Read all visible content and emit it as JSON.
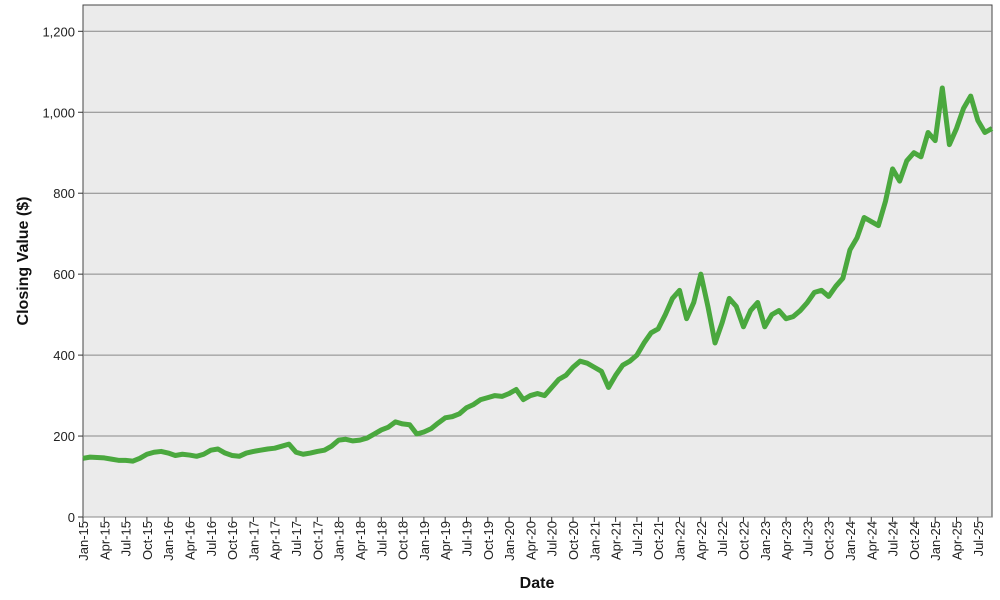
{
  "chart_data": {
    "type": "line",
    "xlabel": "Date",
    "ylabel": "Closing Value ($)",
    "color": "#4aa83e",
    "grid": true,
    "x": [
      "2015-01",
      "2015-02",
      "2015-03",
      "2015-04",
      "2015-05",
      "2015-06",
      "2015-07",
      "2015-08",
      "2015-09",
      "2015-10",
      "2015-11",
      "2015-12",
      "2016-01",
      "2016-02",
      "2016-03",
      "2016-04",
      "2016-05",
      "2016-06",
      "2016-07",
      "2016-08",
      "2016-09",
      "2016-10",
      "2016-11",
      "2016-12",
      "2017-01",
      "2017-02",
      "2017-03",
      "2017-04",
      "2017-05",
      "2017-06",
      "2017-07",
      "2017-08",
      "2017-09",
      "2017-10",
      "2017-11",
      "2017-12",
      "2018-01",
      "2018-02",
      "2018-03",
      "2018-04",
      "2018-05",
      "2018-06",
      "2018-07",
      "2018-08",
      "2018-09",
      "2018-10",
      "2018-11",
      "2018-12",
      "2019-01",
      "2019-02",
      "2019-03",
      "2019-04",
      "2019-05",
      "2019-06",
      "2019-07",
      "2019-08",
      "2019-09",
      "2019-10",
      "2019-11",
      "2019-12",
      "2020-01",
      "2020-02",
      "2020-03",
      "2020-04",
      "2020-05",
      "2020-06",
      "2020-07",
      "2020-08",
      "2020-09",
      "2020-10",
      "2020-11",
      "2020-12",
      "2021-01",
      "2021-02",
      "2021-03",
      "2021-04",
      "2021-05",
      "2021-06",
      "2021-07",
      "2021-08",
      "2021-09",
      "2021-10",
      "2021-11",
      "2021-12",
      "2022-01",
      "2022-02",
      "2022-03",
      "2022-04",
      "2022-05",
      "2022-06",
      "2022-07",
      "2022-08",
      "2022-09",
      "2022-10",
      "2022-11",
      "2022-12",
      "2023-01",
      "2023-02",
      "2023-03",
      "2023-04",
      "2023-05",
      "2023-06",
      "2023-07",
      "2023-08",
      "2023-09",
      "2023-10",
      "2023-11",
      "2023-12",
      "2024-01",
      "2024-02",
      "2024-03",
      "2024-04",
      "2024-05",
      "2024-06",
      "2024-07",
      "2024-08",
      "2024-09",
      "2024-10",
      "2024-11",
      "2024-12",
      "2025-01",
      "2025-02",
      "2025-03",
      "2025-04",
      "2025-05",
      "2025-06",
      "2025-07",
      "2025-08",
      "2025-09"
    ],
    "values": [
      145,
      148,
      147,
      146,
      143,
      140,
      140,
      138,
      145,
      155,
      160,
      162,
      158,
      152,
      155,
      153,
      150,
      155,
      165,
      168,
      158,
      152,
      150,
      158,
      162,
      165,
      168,
      170,
      175,
      180,
      160,
      155,
      158,
      162,
      165,
      175,
      190,
      192,
      188,
      190,
      195,
      205,
      215,
      222,
      235,
      230,
      228,
      205,
      210,
      218,
      232,
      245,
      248,
      255,
      270,
      278,
      290,
      295,
      300,
      298,
      305,
      315,
      290,
      300,
      305,
      300,
      320,
      340,
      350,
      370,
      385,
      380,
      370,
      360,
      320,
      350,
      375,
      385,
      400,
      430,
      455,
      465,
      500,
      540,
      560,
      490,
      530,
      600,
      520,
      430,
      480,
      540,
      520,
      470,
      510,
      530,
      470,
      500,
      510,
      490,
      495,
      510,
      530,
      555,
      560,
      545,
      570,
      590,
      660,
      690,
      740,
      730,
      720,
      780,
      860,
      830,
      880,
      900,
      890,
      950,
      930,
      1060,
      920,
      960,
      1010,
      1040,
      980,
      950,
      960
    ],
    "xlim": [
      "2015-01",
      "2025-09"
    ],
    "xticks": [
      {
        "value": "2015-01",
        "label": "Jan-15"
      },
      {
        "value": "2015-04",
        "label": "Apr-15"
      },
      {
        "value": "2015-07",
        "label": "Jul-15"
      },
      {
        "value": "2015-10",
        "label": "Oct-15"
      },
      {
        "value": "2016-01",
        "label": "Jan-16"
      },
      {
        "value": "2016-04",
        "label": "Apr-16"
      },
      {
        "value": "2016-07",
        "label": "Jul-16"
      },
      {
        "value": "2016-10",
        "label": "Oct-16"
      },
      {
        "value": "2017-01",
        "label": "Jan-17"
      },
      {
        "value": "2017-04",
        "label": "Apr-17"
      },
      {
        "value": "2017-07",
        "label": "Jul-17"
      },
      {
        "value": "2017-10",
        "label": "Oct-17"
      },
      {
        "value": "2018-01",
        "label": "Jan-18"
      },
      {
        "value": "2018-04",
        "label": "Apr-18"
      },
      {
        "value": "2018-07",
        "label": "Jul-18"
      },
      {
        "value": "2018-10",
        "label": "Oct-18"
      },
      {
        "value": "2019-01",
        "label": "Jan-19"
      },
      {
        "value": "2019-04",
        "label": "Apr-19"
      },
      {
        "value": "2019-07",
        "label": "Jul-19"
      },
      {
        "value": "2019-10",
        "label": "Oct-19"
      },
      {
        "value": "2020-01",
        "label": "Jan-20"
      },
      {
        "value": "2020-04",
        "label": "Apr-20"
      },
      {
        "value": "2020-07",
        "label": "Jul-20"
      },
      {
        "value": "2020-10",
        "label": "Oct-20"
      },
      {
        "value": "2021-01",
        "label": "Jan-21"
      },
      {
        "value": "2021-04",
        "label": "Apr-21"
      },
      {
        "value": "2021-07",
        "label": "Jul-21"
      },
      {
        "value": "2021-10",
        "label": "Oct-21"
      },
      {
        "value": "2022-01",
        "label": "Jan-22"
      },
      {
        "value": "2022-04",
        "label": "Apr-22"
      },
      {
        "value": "2022-07",
        "label": "Jul-22"
      },
      {
        "value": "2022-10",
        "label": "Oct-22"
      },
      {
        "value": "2023-01",
        "label": "Jan-23"
      },
      {
        "value": "2023-04",
        "label": "Apr-23"
      },
      {
        "value": "2023-07",
        "label": "Jul-23"
      },
      {
        "value": "2023-10",
        "label": "Oct-23"
      },
      {
        "value": "2024-01",
        "label": "Jan-24"
      },
      {
        "value": "2024-04",
        "label": "Apr-24"
      },
      {
        "value": "2024-07",
        "label": "Jul-24"
      },
      {
        "value": "2024-10",
        "label": "Oct-24"
      },
      {
        "value": "2025-01",
        "label": "Jan-25"
      },
      {
        "value": "2025-04",
        "label": "Apr-25"
      },
      {
        "value": "2025-07",
        "label": "Jul-25"
      }
    ],
    "ylim": [
      0,
      1265
    ],
    "yticks": [
      0,
      200,
      400,
      600,
      800,
      {
        "value": 1000,
        "label": "1,000"
      },
      {
        "value": 1200,
        "label": "1,200"
      }
    ]
  }
}
